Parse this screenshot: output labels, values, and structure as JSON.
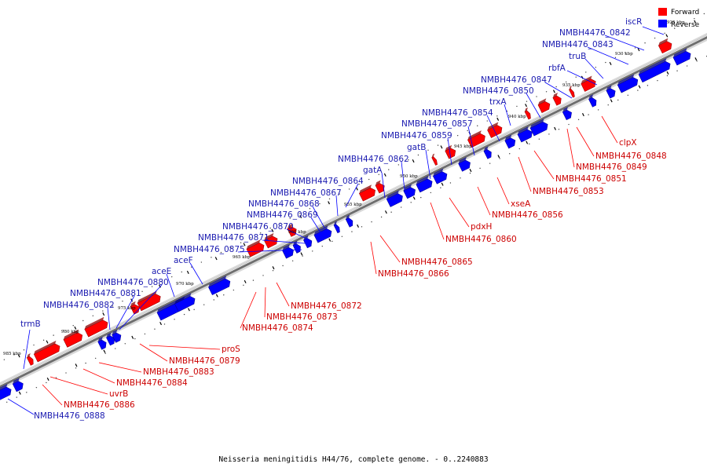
{
  "caption": "Neisseria meningitidis H44/76, complete genome. - 0..2240883",
  "legend": [
    {
      "label": "Forward",
      "color": "#ff0000"
    },
    {
      "label": "Reverse",
      "color": "#0000ff"
    }
  ],
  "colors": {
    "forward": "#ff0000",
    "forward_label": "#cc0000",
    "reverse": "#0000ff",
    "reverse_label": "#1a1ab0",
    "backbone": "#888888"
  },
  "ticks": [
    "985 kbp",
    "980 kbp",
    "975 kbp",
    "970 kbp",
    "965 kbp",
    "960 kbp",
    "955 kbp",
    "950 kbp",
    "945 kbp",
    "940 kbp",
    "935 kbp",
    "930 kbp",
    "925 kbp"
  ],
  "reverse_labels": [
    "iscR",
    "NMBH4476_0842",
    "NMBH4476_0843",
    "truB",
    "rbfA",
    "NMBH4476_0847",
    "NMBH4476_0850",
    "trxA",
    "NMBH4476_0854",
    "NMBH4476_0857",
    "NMBH4476_0859",
    "gatB",
    "NMBH4476_0862",
    "gatA",
    "NMBH4476_0864",
    "NMBH4476_0867",
    "NMBH4476_0868",
    "NMBH4476_0869",
    "NMBH4476_0870",
    "NMBH4476_0871",
    "NMBH4476_0875",
    "aceF",
    "aceE",
    "NMBH4476_0880",
    "NMBH4476_0881",
    "NMBH4476_0882",
    "trmB",
    "NMBH4476_0888"
  ],
  "forward_labels": [
    "clpX",
    "NMBH4476_0848",
    "NMBH4476_0849",
    "NMBH4476_0851",
    "NMBH4476_0853",
    "xseA",
    "NMBH4476_0856",
    "pdxH",
    "NMBH4476_0860",
    "NMBH4476_0865",
    "NMBH4476_0866",
    "NMBH4476_0872",
    "NMBH4476_0873",
    "NMBH4476_0874",
    "proS",
    "NMBH4476_0879",
    "NMBH4476_0883",
    "NMBH4476_0884",
    "uvrB",
    "NMBH4476_0886"
  ]
}
